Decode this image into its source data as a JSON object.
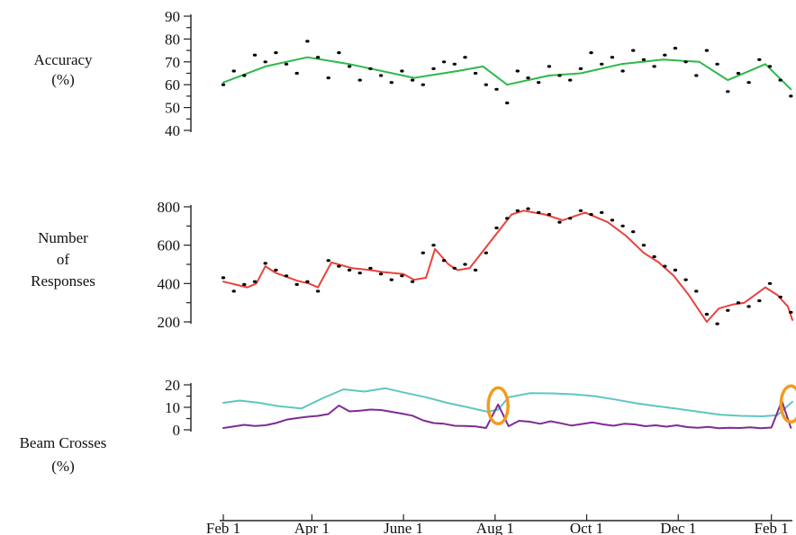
{
  "chart_data": [
    {
      "type": "scatter",
      "ylabel": [
        "Accuracy",
        "(%)"
      ],
      "yticks": [
        90,
        80,
        70,
        60,
        50,
        40
      ],
      "ylim": [
        40,
        90
      ],
      "x_axis_dates": [
        "Feb 1",
        "Apr 1",
        "June 1",
        "Aug 1",
        "Oct 1",
        "Dec 1",
        "Feb 1"
      ],
      "series": [
        {
          "type": "line",
          "color": "#2eb84a",
          "x": [
            "2014-02-01",
            "2014-03-01",
            "2014-03-29",
            "2014-04-26",
            "2014-06-08",
            "2014-07-07",
            "2014-07-24",
            "2014-08-09",
            "2014-09-06",
            "2014-09-27",
            "2014-10-24",
            "2014-11-21",
            "2014-12-15",
            "2015-01-03",
            "2015-01-28",
            "2015-02-14"
          ],
          "y": [
            61,
            68,
            72,
            69,
            63,
            66,
            68,
            60,
            64,
            65,
            69,
            71,
            70,
            62,
            69,
            58
          ]
        },
        {
          "type": "scatter",
          "color": "#000000",
          "note": "daily points, estimated from cloud",
          "x": [
            "2014-02-01",
            "2014-02-08",
            "2014-02-15",
            "2014-02-22",
            "2014-03-01",
            "2014-03-08",
            "2014-03-15",
            "2014-03-22",
            "2014-03-29",
            "2014-04-05",
            "2014-04-12",
            "2014-04-19",
            "2014-04-26",
            "2014-05-03",
            "2014-05-10",
            "2014-05-17",
            "2014-05-24",
            "2014-05-31",
            "2014-06-07",
            "2014-06-14",
            "2014-06-21",
            "2014-06-28",
            "2014-07-05",
            "2014-07-12",
            "2014-07-19",
            "2014-07-26",
            "2014-08-02",
            "2014-08-09",
            "2014-08-16",
            "2014-08-23",
            "2014-08-30",
            "2014-09-06",
            "2014-09-13",
            "2014-09-20",
            "2014-09-27",
            "2014-10-04",
            "2014-10-11",
            "2014-10-18",
            "2014-10-25",
            "2014-11-01",
            "2014-11-08",
            "2014-11-15",
            "2014-11-22",
            "2014-11-29",
            "2014-12-06",
            "2014-12-13",
            "2014-12-20",
            "2014-12-27",
            "2015-01-03",
            "2015-01-10",
            "2015-01-17",
            "2015-01-24",
            "2015-01-31",
            "2015-02-07",
            "2015-02-14"
          ],
          "y": [
            60,
            66,
            64,
            73,
            70,
            74,
            69,
            65,
            79,
            72,
            63,
            74,
            68,
            62,
            67,
            64,
            61,
            66,
            62,
            60,
            67,
            70,
            69,
            72,
            65,
            60,
            58,
            52,
            66,
            63,
            61,
            68,
            64,
            62,
            67,
            74,
            69,
            72,
            66,
            75,
            71,
            68,
            73,
            76,
            70,
            64,
            75,
            69,
            57,
            65,
            61,
            71,
            68,
            62,
            55
          ]
        }
      ]
    },
    {
      "type": "scatter",
      "ylabel": [
        "Number",
        "of",
        "Responses"
      ],
      "yticks": [
        800,
        600,
        400,
        200
      ],
      "ylim": [
        200,
        800
      ],
      "series": [
        {
          "type": "line",
          "color": "#e8433e",
          "x": [
            "2014-02-01",
            "2014-02-09",
            "2014-02-17",
            "2014-02-23",
            "2014-03-01",
            "2014-03-08",
            "2014-03-22",
            "2014-03-30",
            "2014-04-05",
            "2014-04-14",
            "2014-04-28",
            "2014-05-10",
            "2014-05-18",
            "2014-06-01",
            "2014-06-08",
            "2014-06-16",
            "2014-06-22",
            "2014-07-01",
            "2014-07-07",
            "2014-07-15",
            "2014-07-23",
            "2014-08-04",
            "2014-08-12",
            "2014-08-20",
            "2014-09-03",
            "2014-09-15",
            "2014-09-30",
            "2014-10-15",
            "2014-10-27",
            "2014-11-08",
            "2014-11-18",
            "2014-11-28",
            "2014-12-08",
            "2014-12-20",
            "2014-12-28",
            "2015-01-06",
            "2015-01-14",
            "2015-01-28",
            "2015-02-05",
            "2015-02-12",
            "2015-02-15"
          ],
          "y": [
            410,
            395,
            380,
            400,
            490,
            455,
            415,
            400,
            380,
            510,
            480,
            470,
            460,
            450,
            420,
            430,
            580,
            500,
            470,
            480,
            560,
            680,
            760,
            780,
            760,
            730,
            770,
            720,
            650,
            560,
            510,
            440,
            340,
            200,
            270,
            290,
            300,
            380,
            340,
            280,
            210
          ]
        },
        {
          "type": "scatter",
          "color": "#000000",
          "note": "daily points, estimated from cloud",
          "x": [
            "2014-02-01",
            "2014-02-08",
            "2014-02-15",
            "2014-02-22",
            "2014-03-01",
            "2014-03-08",
            "2014-03-15",
            "2014-03-22",
            "2014-03-29",
            "2014-04-05",
            "2014-04-12",
            "2014-04-19",
            "2014-04-26",
            "2014-05-03",
            "2014-05-10",
            "2014-05-17",
            "2014-05-24",
            "2014-05-31",
            "2014-06-07",
            "2014-06-14",
            "2014-06-21",
            "2014-06-28",
            "2014-07-05",
            "2014-07-12",
            "2014-07-19",
            "2014-07-26",
            "2014-08-02",
            "2014-08-09",
            "2014-08-16",
            "2014-08-23",
            "2014-08-30",
            "2014-09-06",
            "2014-09-13",
            "2014-09-20",
            "2014-09-27",
            "2014-10-04",
            "2014-10-11",
            "2014-10-18",
            "2014-10-25",
            "2014-11-01",
            "2014-11-08",
            "2014-11-15",
            "2014-11-22",
            "2014-11-29",
            "2014-12-06",
            "2014-12-13",
            "2014-12-20",
            "2014-12-27",
            "2015-01-03",
            "2015-01-10",
            "2015-01-17",
            "2015-01-24",
            "2015-01-31",
            "2015-02-07",
            "2015-02-14"
          ],
          "y": [
            430,
            360,
            395,
            410,
            505,
            470,
            440,
            395,
            410,
            360,
            520,
            490,
            470,
            455,
            480,
            450,
            420,
            440,
            410,
            560,
            600,
            520,
            480,
            500,
            470,
            560,
            690,
            740,
            780,
            790,
            770,
            760,
            720,
            740,
            780,
            760,
            770,
            730,
            700,
            670,
            600,
            540,
            490,
            470,
            420,
            360,
            240,
            190,
            260,
            300,
            280,
            310,
            400,
            330,
            250
          ]
        }
      ]
    },
    {
      "type": "line",
      "ylabel": [
        "Beam Crosses",
        "(%)"
      ],
      "yticks": [
        20,
        10,
        0
      ],
      "ylim": [
        0,
        20
      ],
      "annotations": [
        {
          "type": "circle",
          "x": "2014-08-03",
          "y": 10.7,
          "color": "#f39b1e"
        },
        {
          "type": "circle",
          "x": "2015-02-14",
          "y": 11.5,
          "color": "#f39b1e"
        }
      ],
      "series": [
        {
          "type": "line",
          "color": "#5fc6c0",
          "x": [
            "2014-02-01",
            "2014-02-12",
            "2014-02-25",
            "2014-03-10",
            "2014-03-25",
            "2014-04-08",
            "2014-04-22",
            "2014-05-06",
            "2014-05-20",
            "2014-06-02",
            "2014-06-16",
            "2014-06-30",
            "2014-07-14",
            "2014-07-27",
            "2014-08-03",
            "2014-08-10",
            "2014-08-24",
            "2014-09-08",
            "2014-09-22",
            "2014-10-06",
            "2014-10-20",
            "2014-11-03",
            "2014-11-17",
            "2014-12-01",
            "2014-12-15",
            "2014-12-29",
            "2015-01-12",
            "2015-01-26",
            "2015-02-05",
            "2015-02-15"
          ],
          "y": [
            12,
            13,
            12,
            10.5,
            9.5,
            14,
            18,
            17,
            18.5,
            16.5,
            14.5,
            12,
            10,
            8,
            9,
            14.5,
            16.3,
            16.2,
            15.8,
            15,
            13.5,
            11.8,
            10.5,
            9.3,
            8,
            6.7,
            6.2,
            6,
            6.5,
            12.5
          ]
        },
        {
          "type": "line",
          "color": "#7e2c94",
          "x": [
            "2014-02-01",
            "2014-02-08",
            "2014-02-15",
            "2014-02-22",
            "2014-03-01",
            "2014-03-08",
            "2014-03-15",
            "2014-03-22",
            "2014-03-29",
            "2014-04-05",
            "2014-04-12",
            "2014-04-19",
            "2014-04-26",
            "2014-05-03",
            "2014-05-10",
            "2014-05-17",
            "2014-05-24",
            "2014-05-31",
            "2014-06-07",
            "2014-06-14",
            "2014-06-21",
            "2014-06-28",
            "2014-07-05",
            "2014-07-12",
            "2014-07-19",
            "2014-07-26",
            "2014-08-03",
            "2014-08-10",
            "2014-08-17",
            "2014-08-24",
            "2014-08-31",
            "2014-09-07",
            "2014-09-14",
            "2014-09-21",
            "2014-09-28",
            "2014-10-05",
            "2014-10-12",
            "2014-10-19",
            "2014-10-26",
            "2014-11-02",
            "2014-11-09",
            "2014-11-16",
            "2014-11-23",
            "2014-11-30",
            "2014-12-07",
            "2014-12-14",
            "2014-12-21",
            "2014-12-28",
            "2015-01-04",
            "2015-01-11",
            "2015-01-18",
            "2015-01-25",
            "2015-02-01",
            "2015-02-08",
            "2015-02-14"
          ],
          "y": [
            0.8,
            1.5,
            2.2,
            1.7,
            2.0,
            3.0,
            4.5,
            5.2,
            5.8,
            6.2,
            7.0,
            10.8,
            8.2,
            8.5,
            9.0,
            8.8,
            8.0,
            7.2,
            6.3,
            4.2,
            3.0,
            2.7,
            1.8,
            1.7,
            1.5,
            0.8,
            11.3,
            1.6,
            4.0,
            3.6,
            2.7,
            3.8,
            2.9,
            1.9,
            2.6,
            3.3,
            2.4,
            1.8,
            2.7,
            2.4,
            1.6,
            2.0,
            1.4,
            2.0,
            1.2,
            0.9,
            1.3,
            0.7,
            0.9,
            0.8,
            1.1,
            0.7,
            1.0,
            12.8,
            0.9
          ]
        }
      ]
    }
  ]
}
